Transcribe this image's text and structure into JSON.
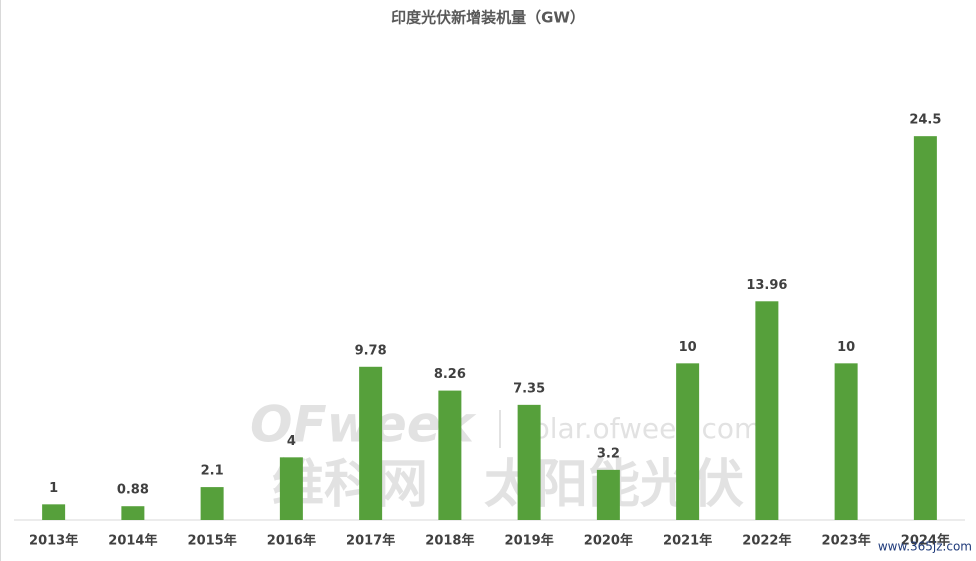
{
  "chart_data": {
    "type": "bar",
    "title": "印度光伏新增装机量（GW）",
    "categories": [
      "2013年",
      "2014年",
      "2015年",
      "2016年",
      "2017年",
      "2018年",
      "2019年",
      "2020年",
      "2021年",
      "2022年",
      "2023年",
      "2024年"
    ],
    "values": [
      1,
      0.88,
      2.1,
      4,
      9.78,
      8.26,
      7.35,
      3.2,
      10,
      13.96,
      10,
      24.5
    ],
    "color": "#56a03b",
    "ylim": [
      0,
      30
    ],
    "watermark": {
      "logo": "OFweek",
      "site": "solar.ofweek.com",
      "name": "维科网 · 太阳能光伏"
    },
    "stamp": "www.365jz.com"
  }
}
